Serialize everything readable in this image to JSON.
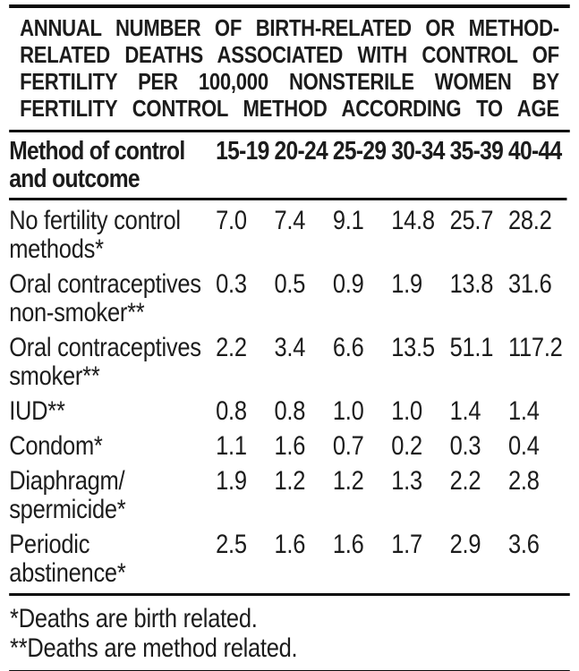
{
  "title": {
    "full": "ANNUAL NUMBER OF BIRTH-RELATED OR METHOD-RELATED DEATHS ASSOCIATED WITH CONTROL OF FERTILITY PER 100,000 NONSTERILE WOMEN BY FERTILITY CONTROL METHOD ACCORDING TO AGE",
    "lines": [
      "ANNUAL NUMBER OF BIRTH-RELATED OR METHOD-",
      "RELATED DEATHS ASSOCIATED WITH CONTROL OF",
      "FERTILITY PER 100,000 NONSTERILE WOMEN BY",
      "FERTILITY CONTROL METHOD ACCORDING TO AGE"
    ]
  },
  "table": {
    "header": {
      "method_lines": [
        "Method of control",
        "and outcome"
      ],
      "age_groups": [
        "15-19",
        "20-24",
        "25-29",
        "30-34",
        "35-39",
        "40-44"
      ]
    },
    "rows": [
      {
        "label": [
          "No fertility control",
          "methods*"
        ],
        "values": [
          "7.0",
          "7.4",
          "9.1",
          "14.8",
          "25.7",
          "28.2"
        ]
      },
      {
        "label": [
          "Oral contraceptives",
          "non-smoker**"
        ],
        "values": [
          "0.3",
          "0.5",
          "0.9",
          "1.9",
          "13.8",
          "31.6"
        ]
      },
      {
        "label": [
          "Oral contraceptives",
          "smoker**"
        ],
        "values": [
          "2.2",
          "3.4",
          "6.6",
          "13.5",
          "51.1",
          "117.2"
        ]
      },
      {
        "label": [
          "IUD**"
        ],
        "values": [
          "0.8",
          "0.8",
          "1.0",
          "1.0",
          "1.4",
          "1.4"
        ]
      },
      {
        "label": [
          "Condom*"
        ],
        "values": [
          "1.1",
          "1.6",
          "0.7",
          "0.2",
          "0.3",
          "0.4"
        ]
      },
      {
        "label": [
          "Diaphragm/",
          "spermicide*"
        ],
        "values": [
          "1.9",
          "1.2",
          "1.2",
          "1.3",
          "2.2",
          "2.8"
        ]
      },
      {
        "label": [
          "Periodic",
          "abstinence*"
        ],
        "values": [
          "2.5",
          "1.6",
          "1.6",
          "1.7",
          "2.9",
          "3.6"
        ]
      }
    ]
  },
  "footnotes": [
    "*Deaths are birth related.",
    "**Deaths are method related."
  ],
  "colors": {
    "text": "#1c1c1c",
    "rule": "#0b0b0b",
    "background": "#ffffff"
  }
}
